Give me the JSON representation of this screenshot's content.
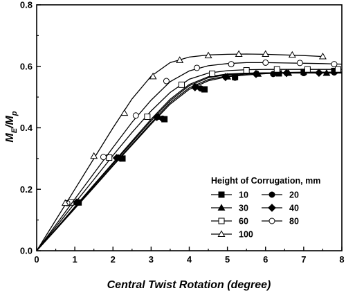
{
  "chart_data": {
    "type": "line",
    "title": "",
    "xlabel": "Central Twist Rotation (degree)",
    "ylabel": {
      "base": "M",
      "sub1": "E",
      "mid": "/M",
      "sub2": "p"
    },
    "xlim": [
      0,
      8
    ],
    "ylim": [
      0,
      0.8
    ],
    "xticks": [
      "0",
      "1",
      "2",
      "3",
      "4",
      "5",
      "6",
      "7",
      "8"
    ],
    "yticks": [
      "0.0",
      "0.2",
      "0.4",
      "0.6",
      "0.8"
    ],
    "grid": false,
    "legend": {
      "title": "Height of Corrugation, mm",
      "placement": "bottom-right"
    },
    "series": [
      {
        "name": "10",
        "marker": "square-filled",
        "x": [
          0,
          0.5,
          1.0,
          1.5,
          2.0,
          2.5,
          3.0,
          3.5,
          4.0,
          4.5,
          5.0,
          5.5,
          6.0,
          6.5,
          7.0,
          7.5,
          8.0
        ],
        "y": [
          0,
          0.068,
          0.137,
          0.206,
          0.276,
          0.344,
          0.412,
          0.477,
          0.525,
          0.553,
          0.566,
          0.572,
          0.576,
          0.578,
          0.58,
          0.58,
          0.58
        ],
        "markers_x": [
          1.1,
          2.25,
          3.35,
          4.4,
          5.2,
          6.35,
          7.0,
          7.8
        ],
        "markers_y": [
          0.157,
          0.3,
          0.428,
          0.525,
          0.565,
          0.577,
          0.582,
          0.585
        ]
      },
      {
        "name": "20",
        "marker": "circle-filled",
        "x": [
          0,
          0.5,
          1.0,
          1.5,
          2.0,
          2.5,
          3.0,
          3.5,
          4.0,
          4.5,
          5.0,
          5.5,
          6.0,
          6.5,
          7.0,
          7.5,
          8.0
        ],
        "y": [
          0,
          0.069,
          0.139,
          0.208,
          0.278,
          0.347,
          0.416,
          0.482,
          0.53,
          0.557,
          0.569,
          0.575,
          0.578,
          0.58,
          0.581,
          0.581,
          0.581
        ],
        "markers_x": [
          1.1,
          2.2,
          3.3,
          4.3,
          5.2,
          6.2,
          7.0,
          7.8
        ],
        "markers_y": [
          0.157,
          0.3,
          0.43,
          0.528,
          0.563,
          0.575,
          0.578,
          0.58
        ]
      },
      {
        "name": "30",
        "marker": "triangle-filled",
        "x": [
          0,
          0.5,
          1.0,
          1.5,
          2.0,
          2.5,
          3.0,
          3.5,
          4.0,
          4.5,
          5.0,
          5.5,
          6.0,
          6.5,
          7.0,
          7.5,
          8.0
        ],
        "y": [
          0,
          0.07,
          0.141,
          0.212,
          0.283,
          0.353,
          0.423,
          0.488,
          0.537,
          0.563,
          0.573,
          0.577,
          0.578,
          0.578,
          0.578,
          0.578,
          0.578
        ],
        "markers_x": [
          1.05,
          2.15,
          3.2,
          4.2,
          5.0,
          5.8,
          6.6,
          7.6
        ],
        "markers_y": [
          0.157,
          0.302,
          0.435,
          0.533,
          0.566,
          0.575,
          0.578,
          0.578
        ]
      },
      {
        "name": "40",
        "marker": "diamond-filled",
        "x": [
          0,
          0.5,
          1.0,
          1.5,
          2.0,
          2.5,
          3.0,
          3.5,
          4.0,
          4.5,
          5.0,
          5.5,
          6.0,
          6.5,
          7.0,
          7.5,
          8.0
        ],
        "y": [
          0,
          0.071,
          0.143,
          0.215,
          0.286,
          0.357,
          0.428,
          0.493,
          0.541,
          0.566,
          0.575,
          0.578,
          0.579,
          0.579,
          0.579,
          0.579,
          0.579
        ],
        "markers_x": [
          1.05,
          2.1,
          3.15,
          4.15,
          4.95,
          5.75,
          6.55,
          7.4
        ],
        "markers_y": [
          0.157,
          0.302,
          0.435,
          0.532,
          0.565,
          0.575,
          0.578,
          0.579
        ]
      },
      {
        "name": "60",
        "marker": "square-open",
        "x": [
          0,
          0.5,
          1.0,
          1.5,
          2.0,
          2.5,
          3.0,
          3.5,
          4.0,
          4.5,
          5.0,
          5.5,
          6.0,
          6.5,
          7.0,
          7.5,
          8.0
        ],
        "y": [
          0,
          0.077,
          0.155,
          0.232,
          0.31,
          0.385,
          0.455,
          0.515,
          0.558,
          0.578,
          0.586,
          0.589,
          0.59,
          0.59,
          0.59,
          0.59,
          0.59
        ],
        "markers_x": [
          0.9,
          1.9,
          2.9,
          3.8,
          4.6,
          5.5,
          6.3,
          7.1,
          7.9
        ],
        "markers_y": [
          0.157,
          0.303,
          0.436,
          0.54,
          0.576,
          0.587,
          0.59,
          0.59,
          0.59
        ]
      },
      {
        "name": "80",
        "marker": "circle-open",
        "x": [
          0,
          0.5,
          1.0,
          1.5,
          2.0,
          2.5,
          3.0,
          3.5,
          4.0,
          4.5,
          5.0,
          5.5,
          6.0,
          6.5,
          7.0,
          7.5,
          8.0
        ],
        "y": [
          0,
          0.084,
          0.168,
          0.252,
          0.336,
          0.418,
          0.49,
          0.55,
          0.585,
          0.602,
          0.609,
          0.612,
          0.612,
          0.611,
          0.61,
          0.609,
          0.607
        ],
        "markers_x": [
          0.8,
          1.75,
          2.6,
          3.4,
          4.2,
          5.1,
          6.0,
          6.9,
          7.8
        ],
        "markers_y": [
          0.155,
          0.305,
          0.44,
          0.552,
          0.595,
          0.607,
          0.612,
          0.611,
          0.607
        ]
      },
      {
        "name": "100",
        "marker": "triangle-open",
        "x": [
          0,
          0.5,
          1.0,
          1.5,
          2.0,
          2.5,
          3.0,
          3.5,
          4.0,
          4.5,
          5.0,
          5.5,
          6.0,
          6.5,
          7.0,
          7.5
        ],
        "y": [
          0,
          0.1,
          0.2,
          0.3,
          0.4,
          0.494,
          0.568,
          0.612,
          0.63,
          0.637,
          0.639,
          0.64,
          0.639,
          0.637,
          0.635,
          0.632
        ],
        "markers_x": [
          0.75,
          1.5,
          2.3,
          3.05,
          3.75,
          4.5,
          5.3,
          6.0,
          6.7,
          7.5
        ],
        "markers_y": [
          0.155,
          0.308,
          0.448,
          0.567,
          0.62,
          0.635,
          0.64,
          0.64,
          0.637,
          0.632
        ]
      }
    ]
  }
}
